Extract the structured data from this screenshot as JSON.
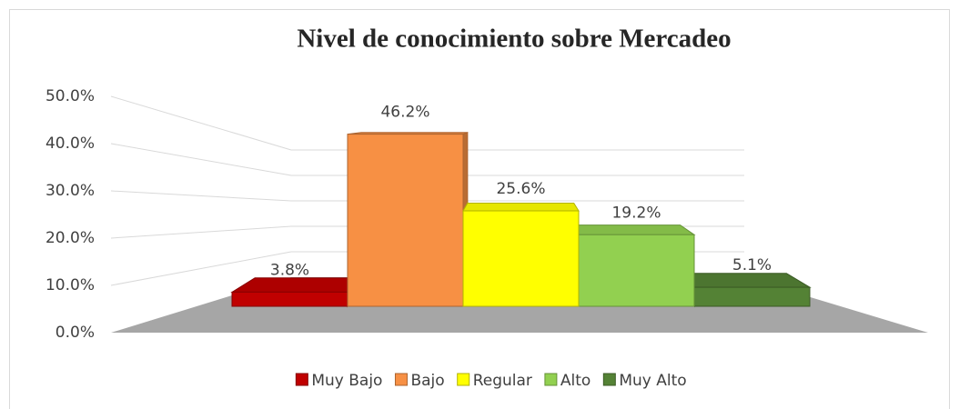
{
  "chart_data": {
    "type": "bar3d",
    "title": "Nivel de conocimiento sobre Mercadeo",
    "categories": [
      "Muy Bajo",
      "Bajo",
      "Regular",
      "Alto",
      "Muy Alto"
    ],
    "values": [
      3.8,
      46.2,
      25.6,
      19.2,
      5.1
    ],
    "value_labels": [
      "3.8%",
      "46.2%",
      "25.6%",
      "19.2%",
      "5.1%"
    ],
    "colors": [
      "#c00000",
      "#f79044",
      "#ffff00",
      "#92d050",
      "#548235"
    ],
    "ylim": [
      0,
      50
    ],
    "yticks": [
      {
        "value": 0,
        "label": "0.0%"
      },
      {
        "value": 10,
        "label": "10.0%"
      },
      {
        "value": 20,
        "label": "20.0%"
      },
      {
        "value": 30,
        "label": "30.0%"
      },
      {
        "value": 40,
        "label": "40.0%"
      },
      {
        "value": 50,
        "label": "50.0%"
      }
    ],
    "grid": true,
    "legend": "bottom"
  }
}
